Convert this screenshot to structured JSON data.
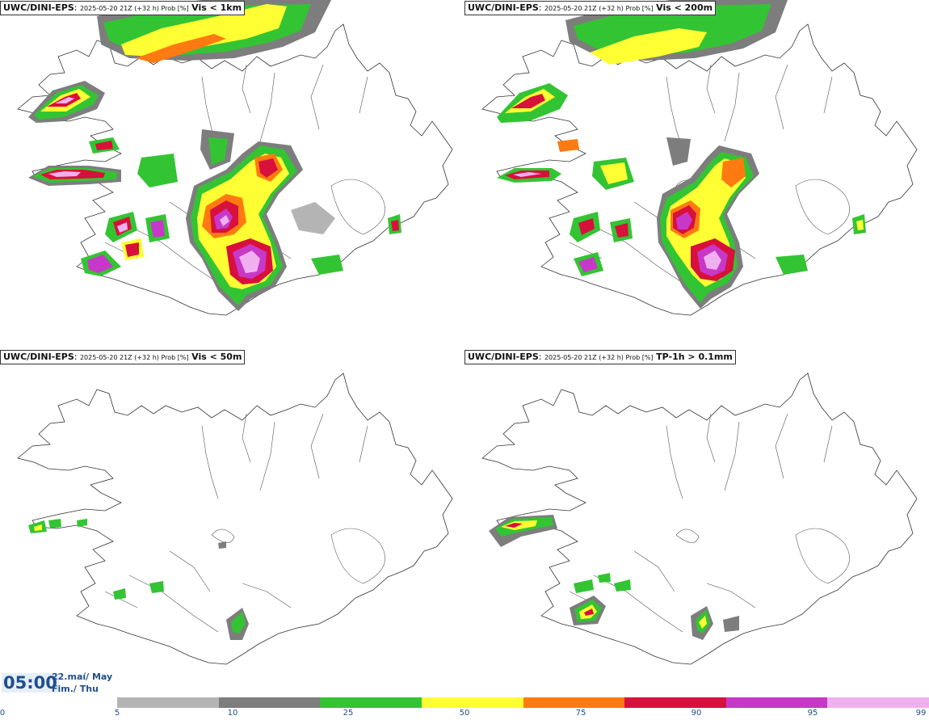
{
  "panels": [
    {
      "model": "UWC/DINI-EPS",
      "meta": "2025-05-20 21Z (+32 h) Prob [%]",
      "field": "Vis < 1km"
    },
    {
      "model": "UWC/DINI-EPS",
      "meta": "2025-05-20 21Z (+32 h) Prob [%]",
      "field": "Vis < 200m"
    },
    {
      "model": "UWC/DINI-EPS",
      "meta": "2025-05-20 21Z (+32 h) Prob [%]",
      "field": "Vis < 50m"
    },
    {
      "model": "UWC/DINI-EPS",
      "meta": "2025-05-20 21Z (+32 h) Prob [%]",
      "field": "TP-1h > 0.1mm"
    }
  ],
  "valid": {
    "time": "05:00",
    "date_line1": "22.maí/ May",
    "date_line2": "Fim./ Thu"
  },
  "legend": {
    "ticks": [
      "0",
      "5",
      "10",
      "25",
      "50",
      "75",
      "90",
      "95",
      "99"
    ],
    "colors": [
      "#b4b4b4",
      "#7d7d7d",
      "#33c433",
      "#ffff33",
      "#ff7a10",
      "#d8103c",
      "#c838c8",
      "#f0b0f0"
    ]
  },
  "colors": {
    "gray_light": "#b4b4b4",
    "gray_dark": "#7d7d7d",
    "green": "#33c433",
    "yellow": "#ffff33",
    "orange": "#ff7a10",
    "red": "#d8103c",
    "magenta": "#c838c8",
    "pink": "#f0b0f0"
  }
}
